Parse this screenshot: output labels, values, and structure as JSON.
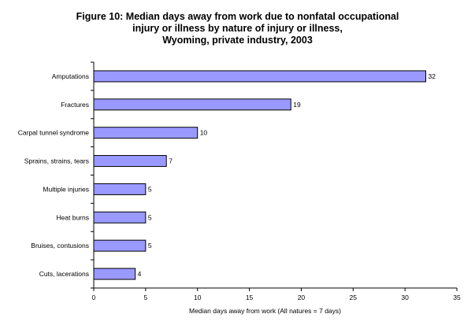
{
  "chart_data": {
    "type": "bar",
    "orientation": "horizontal",
    "title_lines": [
      "Figure 10: Median days away from work due to nonfatal occupational",
      "injury or illness by nature of injury or illness,",
      "Wyoming, private industry, 2003"
    ],
    "categories": [
      "Amputations",
      "Fractures",
      "Carpal tunnel syndrome",
      "Sprains, strains, tears",
      "Multiple injuries",
      "Heat burns",
      "Bruises, contusions",
      "Cuts, lacerations"
    ],
    "values": [
      32,
      19,
      10,
      7,
      5,
      5,
      5,
      4
    ],
    "data_labels": [
      "32",
      "19",
      "10",
      "7",
      "5",
      "5",
      "5",
      "4"
    ],
    "xlabel": "Median days away from work (All natures = 7 days)",
    "ylabel": "",
    "xlim": [
      0,
      35
    ],
    "xticks": [
      "0",
      "5",
      "10",
      "15",
      "20",
      "25",
      "30",
      "35"
    ],
    "grid": false,
    "legend": "none",
    "colors": {
      "bar_fill": "#9999ff",
      "bar_stroke": "#000000",
      "axis": "#000000"
    }
  }
}
